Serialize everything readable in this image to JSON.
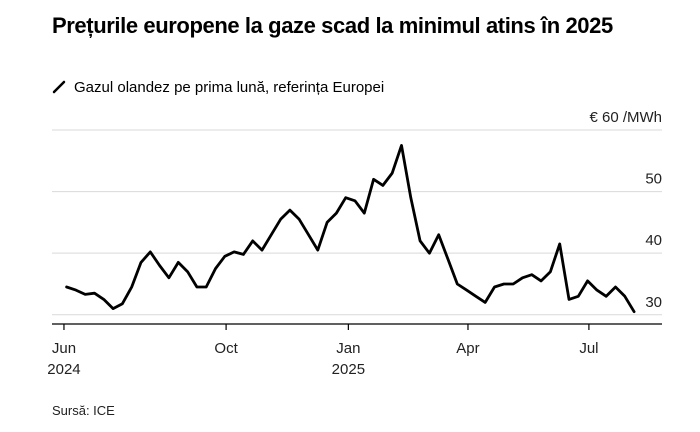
{
  "title": "Prețurile europene la gaze scad la minimul atins în 2025",
  "legend_label": "Gazul olandez pe prima lună, referința Europei",
  "source": "Sursă: ICE",
  "colors": {
    "line": "#000000",
    "grid": "#d9d9d9",
    "axis": "#000000"
  },
  "legend_icon": "diagonal-line-icon",
  "chart_data": {
    "type": "line",
    "title": "Prețurile europene la gaze scad la minimul atins în 2025",
    "series": [
      {
        "name": "Gazul olandez pe prima lună, referința Europei",
        "unit": "€/MWh",
        "x": [
          "2024-06-03",
          "2024-06-10",
          "2024-06-17",
          "2024-06-24",
          "2024-07-01",
          "2024-07-08",
          "2024-07-15",
          "2024-07-22",
          "2024-07-29",
          "2024-08-05",
          "2024-08-12",
          "2024-08-19",
          "2024-08-26",
          "2024-09-02",
          "2024-09-09",
          "2024-09-16",
          "2024-09-23",
          "2024-09-30",
          "2024-10-07",
          "2024-10-14",
          "2024-10-21",
          "2024-10-28",
          "2024-11-04",
          "2024-11-11",
          "2024-11-18",
          "2024-11-25",
          "2024-12-02",
          "2024-12-09",
          "2024-12-16",
          "2024-12-23",
          "2024-12-30",
          "2025-01-06",
          "2025-01-13",
          "2025-01-20",
          "2025-01-27",
          "2025-02-03",
          "2025-02-10",
          "2025-02-17",
          "2025-02-24",
          "2025-03-03",
          "2025-03-10",
          "2025-03-17",
          "2025-03-24",
          "2025-03-31",
          "2025-04-07",
          "2025-04-14",
          "2025-04-21",
          "2025-04-28",
          "2025-05-05",
          "2025-05-12",
          "2025-05-19",
          "2025-05-26",
          "2025-06-02",
          "2025-06-09",
          "2025-06-16",
          "2025-06-23",
          "2025-06-30",
          "2025-07-07",
          "2025-07-14",
          "2025-07-21",
          "2025-07-28",
          "2025-08-04"
        ],
        "values": [
          34.5,
          34.0,
          33.3,
          33.5,
          32.5,
          31.0,
          31.8,
          34.5,
          38.5,
          40.2,
          38.0,
          36.0,
          38.5,
          37.0,
          34.5,
          34.5,
          37.5,
          39.5,
          40.2,
          39.8,
          42.0,
          40.5,
          43.0,
          45.5,
          47.0,
          45.5,
          43.0,
          40.5,
          45.0,
          46.5,
          49.0,
          48.5,
          46.5,
          52.0,
          51.0,
          53.0,
          57.5,
          49.0,
          42.0,
          40.0,
          43.0,
          39.0,
          35.0,
          34.0,
          33.0,
          32.0,
          34.5,
          35.0,
          35.0,
          36.0,
          36.5,
          35.5,
          37.0,
          41.5,
          32.5,
          33.0,
          35.5,
          34.0,
          33.0,
          34.5,
          33.0,
          30.5
        ]
      }
    ],
    "x_ticks": [
      {
        "date": "2024-06-01",
        "label": "Jun",
        "year": "2024"
      },
      {
        "date": "2024-10-01",
        "label": "Oct",
        "year": ""
      },
      {
        "date": "2025-01-01",
        "label": "Jan",
        "year": "2025"
      },
      {
        "date": "2025-04-01",
        "label": "Apr",
        "year": ""
      },
      {
        "date": "2025-07-01",
        "label": "Jul",
        "year": ""
      }
    ],
    "y_ticks": [
      30,
      40,
      50,
      60
    ],
    "y_tick_labels": [
      "30",
      "40",
      "50",
      "€ 60 /MWh"
    ],
    "ylim": [
      28.5,
      60
    ],
    "xlim": [
      "2024-05-23",
      "2025-08-25"
    ],
    "grid": true,
    "xlabel": "",
    "ylabel": "€/MWh"
  }
}
